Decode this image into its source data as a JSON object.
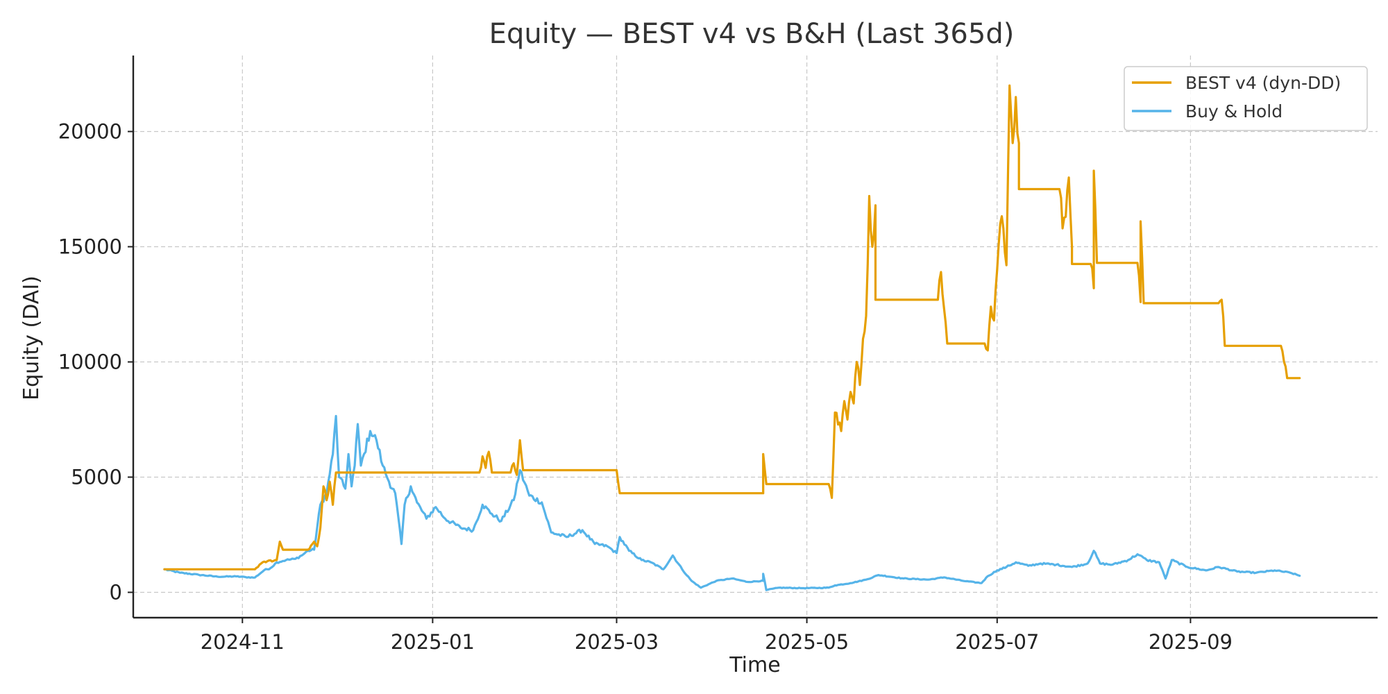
{
  "chart_data": {
    "type": "line",
    "title": "Equity — BEST v4 vs B&H (Last 365d)",
    "xlabel": "Time",
    "ylabel": "Equity (DAI)",
    "x_range": [
      "2024-09-27",
      "2025-10-31"
    ],
    "ylim": [
      -1100,
      23300
    ],
    "x_ticks": [
      "2024-11",
      "2025-01",
      "2025-03",
      "2025-05",
      "2025-07",
      "2025-09"
    ],
    "y_ticks": [
      0,
      5000,
      10000,
      15000,
      20000
    ],
    "grid": true,
    "legend_position": "top-right",
    "series": [
      {
        "name": "BEST v4 (dyn-DD)",
        "color": "#E69F00",
        "points": [
          [
            "2024-10-07",
            1000
          ],
          [
            "2024-11-05",
            1000
          ],
          [
            "2024-11-07",
            1250
          ],
          [
            "2024-11-09",
            1350
          ],
          [
            "2024-11-12",
            1400
          ],
          [
            "2024-11-13",
            2200
          ],
          [
            "2024-11-14",
            1850
          ],
          [
            "2024-11-22",
            1850
          ],
          [
            "2024-11-24",
            2200
          ],
          [
            "2024-11-25",
            2000
          ],
          [
            "2024-11-26",
            2800
          ],
          [
            "2024-11-27",
            4600
          ],
          [
            "2024-11-28",
            4000
          ],
          [
            "2024-11-29",
            4800
          ],
          [
            "2024-11-30",
            3800
          ],
          [
            "2024-12-01",
            5200
          ],
          [
            "2024-12-05",
            5200
          ],
          [
            "2025-01-16",
            5200
          ],
          [
            "2025-01-17",
            5900
          ],
          [
            "2025-01-18",
            5400
          ],
          [
            "2025-01-19",
            6100
          ],
          [
            "2025-01-20",
            5200
          ],
          [
            "2025-01-26",
            5200
          ],
          [
            "2025-01-27",
            5600
          ],
          [
            "2025-01-28",
            5100
          ],
          [
            "2025-01-29",
            6600
          ],
          [
            "2025-01-30",
            5300
          ],
          [
            "2025-03-01",
            5300
          ],
          [
            "2025-03-02",
            4300
          ],
          [
            "2025-04-17",
            4300
          ],
          [
            "2025-04-17",
            6000
          ],
          [
            "2025-04-18",
            4700
          ],
          [
            "2025-05-08",
            4700
          ],
          [
            "2025-05-09",
            4100
          ],
          [
            "2025-05-10",
            7800
          ],
          [
            "2025-05-12",
            7000
          ],
          [
            "2025-05-13",
            8300
          ],
          [
            "2025-05-14",
            7500
          ],
          [
            "2025-05-15",
            8700
          ],
          [
            "2025-05-16",
            8200
          ],
          [
            "2025-05-17",
            10000
          ],
          [
            "2025-05-18",
            9000
          ],
          [
            "2025-05-19",
            11000
          ],
          [
            "2025-05-20",
            12000
          ],
          [
            "2025-05-21",
            17200
          ],
          [
            "2025-05-22",
            15000
          ],
          [
            "2025-05-23",
            16800
          ],
          [
            "2025-05-23",
            12700
          ],
          [
            "2025-06-12",
            12700
          ],
          [
            "2025-06-13",
            13900
          ],
          [
            "2025-06-14",
            12300
          ],
          [
            "2025-06-15",
            10800
          ],
          [
            "2025-06-27",
            10800
          ],
          [
            "2025-06-28",
            10500
          ],
          [
            "2025-06-29",
            12400
          ],
          [
            "2025-06-30",
            11800
          ],
          [
            "2025-07-01",
            14000
          ],
          [
            "2025-07-02",
            16000
          ],
          [
            "2025-07-03",
            15800
          ],
          [
            "2025-07-04",
            14200
          ],
          [
            "2025-07-05",
            22000
          ],
          [
            "2025-07-06",
            19500
          ],
          [
            "2025-07-07",
            21500
          ],
          [
            "2025-07-08",
            19500
          ],
          [
            "2025-07-08",
            17500
          ],
          [
            "2025-07-21",
            17500
          ],
          [
            "2025-07-22",
            15800
          ],
          [
            "2025-07-23",
            16300
          ],
          [
            "2025-07-24",
            18000
          ],
          [
            "2025-07-25",
            15000
          ],
          [
            "2025-07-25",
            14250
          ],
          [
            "2025-07-31",
            14250
          ],
          [
            "2025-08-01",
            13200
          ],
          [
            "2025-08-01",
            18300
          ],
          [
            "2025-08-02",
            14300
          ],
          [
            "2025-08-15",
            14300
          ],
          [
            "2025-08-16",
            12600
          ],
          [
            "2025-08-16",
            16100
          ],
          [
            "2025-08-17",
            12550
          ],
          [
            "2025-09-10",
            12550
          ],
          [
            "2025-09-11",
            12700
          ],
          [
            "2025-09-12",
            10700
          ],
          [
            "2025-09-30",
            10700
          ],
          [
            "2025-10-01",
            10000
          ],
          [
            "2025-10-02",
            9300
          ],
          [
            "2025-10-06",
            9300
          ]
        ]
      },
      {
        "name": "Buy & Hold",
        "color": "#56B4E9",
        "points": [
          [
            "2024-10-07",
            1000
          ],
          [
            "2024-10-12",
            850
          ],
          [
            "2024-10-18",
            760
          ],
          [
            "2024-10-24",
            680
          ],
          [
            "2024-10-30",
            690
          ],
          [
            "2024-11-02",
            660
          ],
          [
            "2024-11-05",
            640
          ],
          [
            "2024-11-08",
            960
          ],
          [
            "2024-11-10",
            1050
          ],
          [
            "2024-11-12",
            1300
          ],
          [
            "2024-11-15",
            1400
          ],
          [
            "2024-11-18",
            1450
          ],
          [
            "2024-11-20",
            1600
          ],
          [
            "2024-11-22",
            1800
          ],
          [
            "2024-11-24",
            1850
          ],
          [
            "2024-11-26",
            3800
          ],
          [
            "2024-11-28",
            4300
          ],
          [
            "2024-11-30",
            6000
          ],
          [
            "2024-12-01",
            7650
          ],
          [
            "2024-12-02",
            5000
          ],
          [
            "2024-12-04",
            4500
          ],
          [
            "2024-12-05",
            6000
          ],
          [
            "2024-12-06",
            4600
          ],
          [
            "2024-12-07",
            5500
          ],
          [
            "2024-12-08",
            7300
          ],
          [
            "2024-12-09",
            5500
          ],
          [
            "2024-12-10",
            6000
          ],
          [
            "2024-12-12",
            7000
          ],
          [
            "2024-12-14",
            6600
          ],
          [
            "2024-12-16",
            5500
          ],
          [
            "2024-12-18",
            4800
          ],
          [
            "2024-12-20",
            4300
          ],
          [
            "2024-12-22",
            2100
          ],
          [
            "2024-12-23",
            3800
          ],
          [
            "2024-12-25",
            4600
          ],
          [
            "2024-12-27",
            3900
          ],
          [
            "2024-12-30",
            3200
          ],
          [
            "2025-01-02",
            3700
          ],
          [
            "2025-01-05",
            3200
          ],
          [
            "2025-01-10",
            2800
          ],
          [
            "2025-01-14",
            2700
          ],
          [
            "2025-01-17",
            3800
          ],
          [
            "2025-01-20",
            3400
          ],
          [
            "2025-01-23",
            3100
          ],
          [
            "2025-01-27",
            4000
          ],
          [
            "2025-01-29",
            5300
          ],
          [
            "2025-02-01",
            4200
          ],
          [
            "2025-02-05",
            3900
          ],
          [
            "2025-02-08",
            2600
          ],
          [
            "2025-02-13",
            2400
          ],
          [
            "2025-02-18",
            2700
          ],
          [
            "2025-02-22",
            2100
          ],
          [
            "2025-02-26",
            2000
          ],
          [
            "2025-03-01",
            1700
          ],
          [
            "2025-03-02",
            2400
          ],
          [
            "2025-03-05",
            1800
          ],
          [
            "2025-03-09",
            1400
          ],
          [
            "2025-03-12",
            1300
          ],
          [
            "2025-03-16",
            1000
          ],
          [
            "2025-03-19",
            1600
          ],
          [
            "2025-03-22",
            1000
          ],
          [
            "2025-03-25",
            500
          ],
          [
            "2025-03-28",
            200
          ],
          [
            "2025-04-02",
            500
          ],
          [
            "2025-04-07",
            600
          ],
          [
            "2025-04-12",
            450
          ],
          [
            "2025-04-17",
            500
          ],
          [
            "2025-04-17",
            800
          ],
          [
            "2025-04-18",
            100
          ],
          [
            "2025-04-22",
            200
          ],
          [
            "2025-04-30",
            180
          ],
          [
            "2025-05-08",
            200
          ],
          [
            "2025-05-10",
            300
          ],
          [
            "2025-05-15",
            400
          ],
          [
            "2025-05-20",
            550
          ],
          [
            "2025-05-24",
            750
          ],
          [
            "2025-06-01",
            600
          ],
          [
            "2025-06-09",
            550
          ],
          [
            "2025-06-14",
            650
          ],
          [
            "2025-06-20",
            500
          ],
          [
            "2025-06-26",
            400
          ],
          [
            "2025-06-28",
            700
          ],
          [
            "2025-07-01",
            950
          ],
          [
            "2025-07-04",
            1100
          ],
          [
            "2025-07-07",
            1300
          ],
          [
            "2025-07-11",
            1150
          ],
          [
            "2025-07-15",
            1250
          ],
          [
            "2025-07-20",
            1200
          ],
          [
            "2025-07-25",
            1100
          ],
          [
            "2025-07-30",
            1250
          ],
          [
            "2025-08-01",
            1800
          ],
          [
            "2025-08-03",
            1250
          ],
          [
            "2025-08-07",
            1200
          ],
          [
            "2025-08-12",
            1400
          ],
          [
            "2025-08-15",
            1650
          ],
          [
            "2025-08-18",
            1400
          ],
          [
            "2025-08-22",
            1300
          ],
          [
            "2025-08-24",
            600
          ],
          [
            "2025-08-26",
            1400
          ],
          [
            "2025-08-31",
            1100
          ],
          [
            "2025-09-06",
            950
          ],
          [
            "2025-09-10",
            1100
          ],
          [
            "2025-09-16",
            900
          ],
          [
            "2025-09-22",
            850
          ],
          [
            "2025-09-28",
            950
          ],
          [
            "2025-10-03",
            850
          ],
          [
            "2025-10-06",
            720
          ]
        ]
      }
    ]
  }
}
